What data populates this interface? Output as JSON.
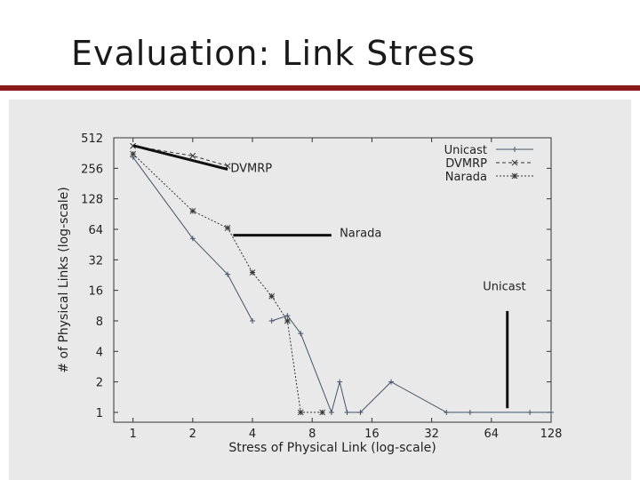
{
  "slide": {
    "title": "Evaluation: Link Stress",
    "accent_color": "#8b1a1a"
  },
  "chart_data": {
    "type": "line",
    "title": "",
    "xlabel": "Stress of Physical Link (log-scale)",
    "ylabel": "# of Physical Links (log-scale)",
    "xscale": "log2",
    "yscale": "log2",
    "xlim": [
      0.8,
      128
    ],
    "ylim": [
      0.8,
      512
    ],
    "x_ticks": [
      1,
      2,
      4,
      8,
      16,
      32,
      64,
      128
    ],
    "x_tick_labels": [
      "1",
      "2",
      "4",
      "8",
      "16",
      "32",
      "64",
      "128"
    ],
    "y_ticks": [
      1,
      2,
      4,
      8,
      16,
      32,
      64,
      128,
      256,
      512
    ],
    "y_tick_labels": [
      "1",
      "2",
      "4",
      "8",
      "16",
      "32",
      "64",
      "128",
      "256",
      "512"
    ],
    "legend_position": "top-right",
    "series": [
      {
        "name": "Unicast",
        "style": "solid",
        "marker": "+",
        "color": "#44536b",
        "points": [
          [
            1,
            330
          ],
          [
            2,
            52
          ],
          [
            3,
            23
          ],
          [
            4,
            8
          ],
          [
            null,
            null
          ],
          [
            5,
            8
          ],
          [
            6,
            9
          ],
          [
            7,
            6
          ],
          [
            10,
            1
          ],
          [
            11,
            2
          ],
          [
            12,
            1
          ],
          [
            14,
            1
          ],
          [
            20,
            2
          ],
          [
            38,
            1
          ],
          [
            50,
            1
          ],
          [
            100,
            1
          ],
          [
            128,
            1
          ]
        ]
      },
      {
        "name": "DVMRP",
        "style": "dashed",
        "marker": "x",
        "color": "#333333",
        "points": [
          [
            1,
            425
          ],
          [
            2,
            340
          ],
          [
            3,
            270
          ]
        ]
      },
      {
        "name": "Narada",
        "style": "dotted",
        "marker": "*",
        "color": "#333333",
        "points": [
          [
            1,
            355
          ],
          [
            2,
            97
          ],
          [
            3,
            66
          ],
          [
            4,
            24
          ],
          [
            5,
            14
          ],
          [
            6,
            8
          ],
          [
            7,
            1
          ],
          [
            9,
            1
          ]
        ]
      }
    ],
    "annotations": [
      {
        "text": "DVMRP",
        "x": 3.1,
        "y": 235,
        "arrow_from": [
          1,
          430
        ],
        "arrow_to": [
          3,
          250
        ]
      },
      {
        "text": "Narada",
        "x": 11,
        "y": 54,
        "arrow_from": [
          10,
          56
        ],
        "arrow_to": [
          3.2,
          56
        ]
      },
      {
        "text": "Unicast",
        "x": 58,
        "y": 16,
        "arrow_from": [
          77,
          10
        ],
        "arrow_to": [
          77,
          1.1
        ]
      }
    ]
  }
}
